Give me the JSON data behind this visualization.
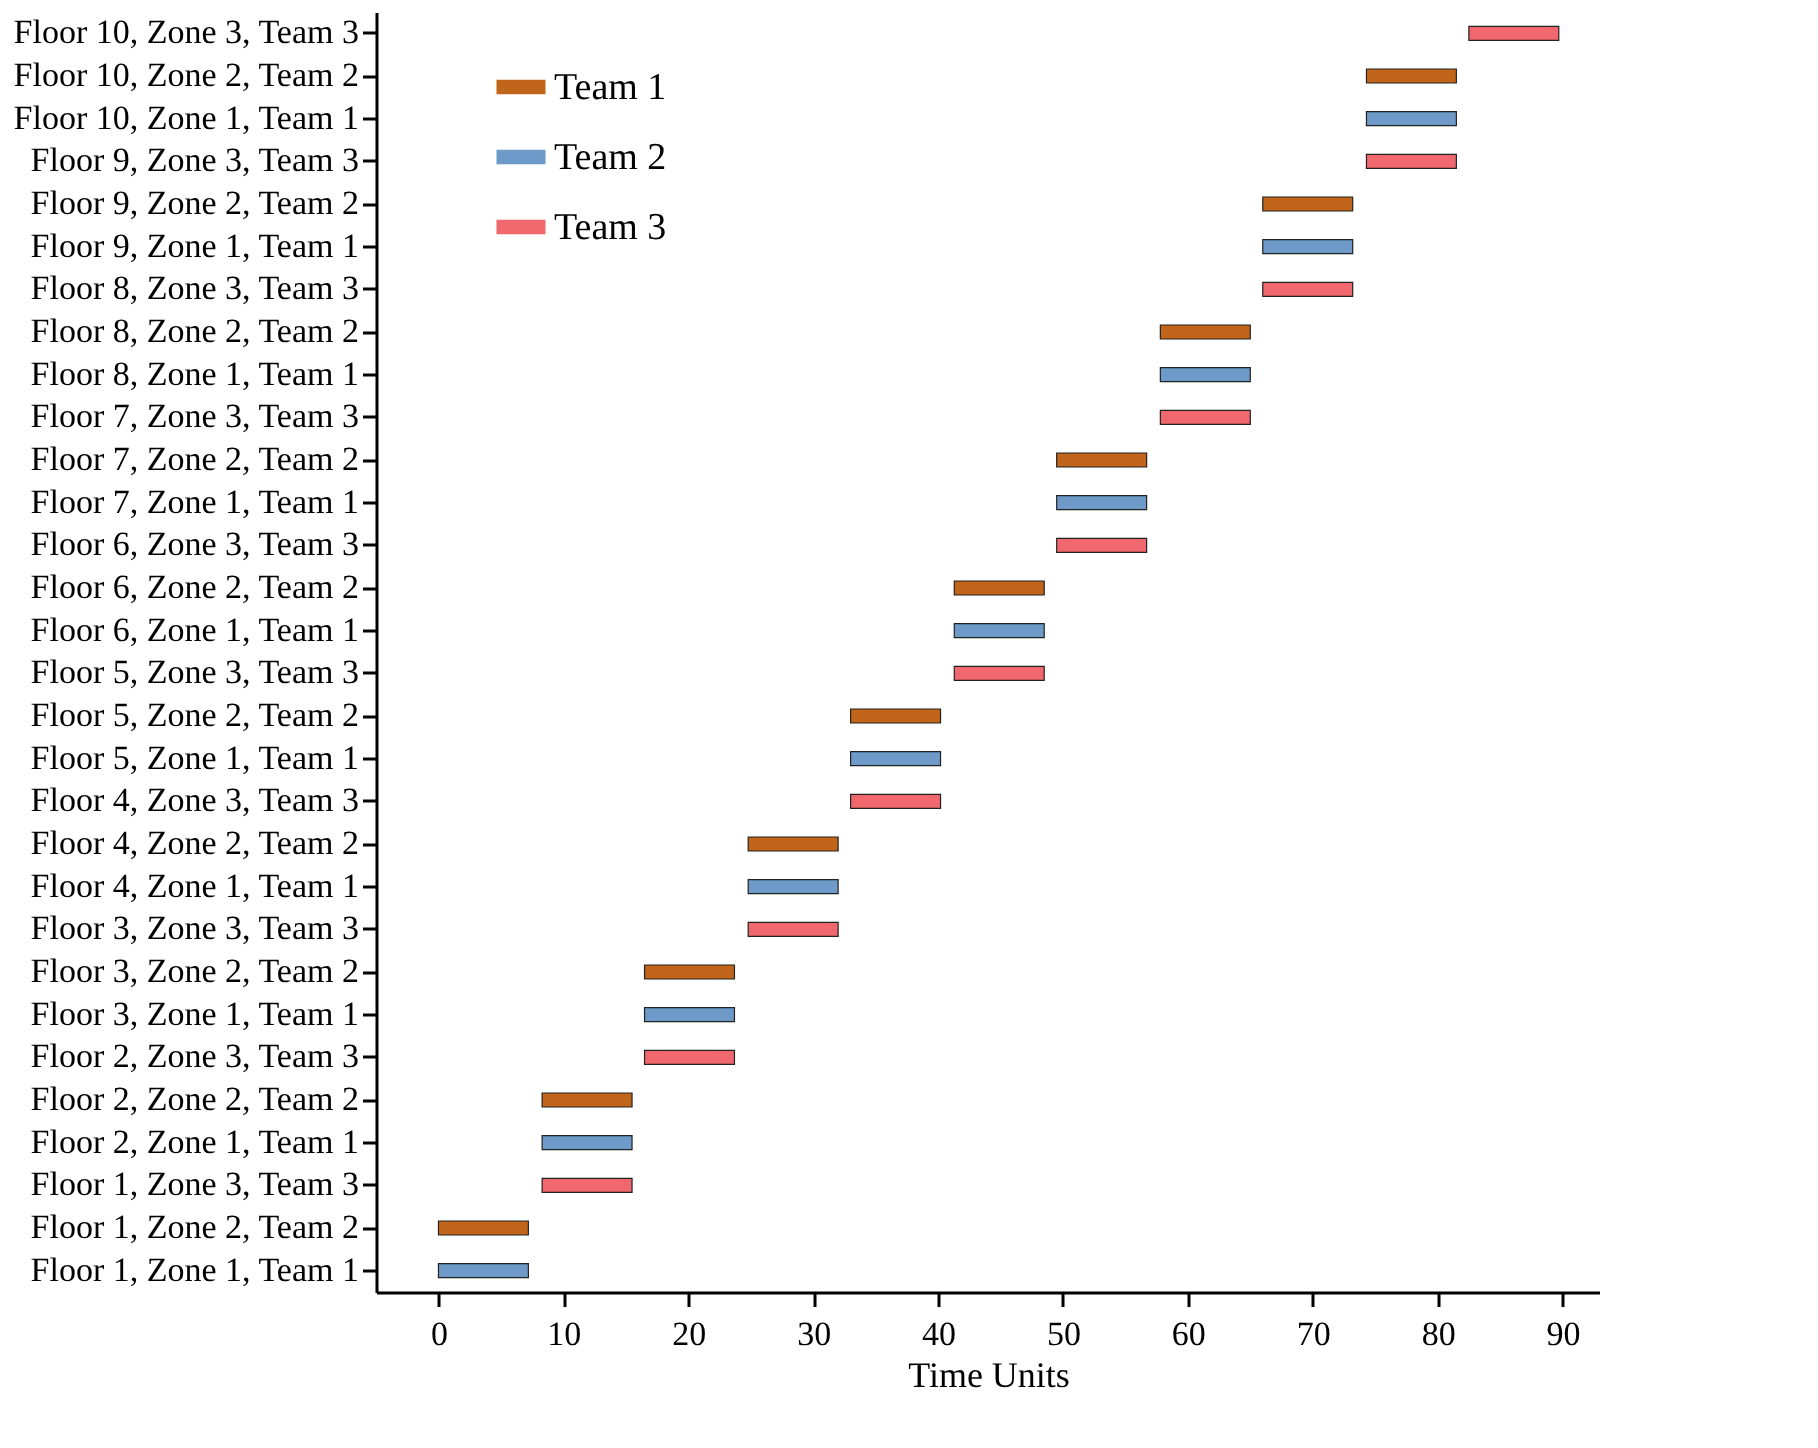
{
  "chart_data": {
    "type": "bar",
    "orientation": "horizontal",
    "xlabel": "Time Units",
    "xlim": [
      -5,
      93
    ],
    "xticks": [
      0,
      10,
      20,
      30,
      40,
      50,
      60,
      70,
      80,
      90
    ],
    "legend": "top left",
    "categories": [
      "Floor 10, Zone 3, Team 3",
      "Floor 10, Zone 2, Team 2",
      "Floor 10, Zone 1, Team 1",
      "Floor 9, Zone 3, Team 3",
      "Floor 9, Zone 2, Team 2",
      "Floor 9, Zone 1, Team 1",
      "Floor 8, Zone 3, Team 3",
      "Floor 8, Zone 2, Team 2",
      "Floor 8, Zone 1, Team 1",
      "Floor 7, Zone 3, Team 3",
      "Floor 7, Zone 2, Team 2",
      "Floor 7, Zone 1, Team 1",
      "Floor 6, Zone 3, Team 3",
      "Floor 6, Zone 2, Team 2",
      "Floor 6, Zone 1, Team 1",
      "Floor 5, Zone 3, Team 3",
      "Floor 5, Zone 2, Team 2",
      "Floor 5, Zone 1, Team 1",
      "Floor 4, Zone 3, Team 3",
      "Floor 4, Zone 2, Team 2",
      "Floor 4, Zone 1, Team 1",
      "Floor 3, Zone 3, Team 3",
      "Floor 3, Zone 2, Team 2",
      "Floor 3, Zone 1, Team 1",
      "Floor 2, Zone 3, Team 3",
      "Floor 2, Zone 2, Team 2",
      "Floor 2, Zone 1, Team 1",
      "Floor 1, Zone 3, Team 3",
      "Floor 1, Zone 2, Team 2",
      "Floor 1, Zone 1, Team 1"
    ],
    "series": [
      {
        "name": "Team 1",
        "color": "#c0651a",
        "base": [
          null,
          74.3,
          null,
          null,
          66,
          null,
          null,
          57.8,
          null,
          null,
          49.5,
          null,
          null,
          41.3,
          null,
          null,
          33,
          null,
          null,
          24.8,
          null,
          null,
          16.5,
          null,
          null,
          8.3,
          null,
          null,
          0,
          null
        ],
        "values": [
          null,
          7.2,
          null,
          null,
          7.2,
          null,
          null,
          7.2,
          null,
          null,
          7.2,
          null,
          null,
          7.2,
          null,
          null,
          7.2,
          null,
          null,
          7.2,
          null,
          null,
          7.2,
          null,
          null,
          7.2,
          null,
          null,
          7.2,
          null
        ]
      },
      {
        "name": "Team 2",
        "color": "#6d9ac8",
        "base": [
          null,
          null,
          74.3,
          null,
          null,
          66,
          null,
          null,
          57.8,
          null,
          null,
          49.5,
          null,
          null,
          41.3,
          null,
          null,
          33,
          null,
          null,
          24.8,
          null,
          null,
          16.5,
          null,
          null,
          8.3,
          null,
          null,
          0
        ],
        "values": [
          null,
          null,
          7.2,
          null,
          null,
          7.2,
          null,
          null,
          7.2,
          null,
          null,
          7.2,
          null,
          null,
          7.2,
          null,
          null,
          7.2,
          null,
          null,
          7.2,
          null,
          null,
          7.2,
          null,
          null,
          7.2,
          null,
          null,
          7.2
        ]
      },
      {
        "name": "Team 3",
        "color": "#f0686e",
        "base": [
          82.5,
          null,
          null,
          74.3,
          null,
          null,
          66,
          null,
          null,
          57.8,
          null,
          null,
          49.5,
          null,
          null,
          41.3,
          null,
          null,
          33,
          null,
          null,
          24.8,
          null,
          null,
          16.5,
          null,
          null,
          8.3,
          null,
          null
        ],
        "values": [
          7.2,
          null,
          null,
          7.2,
          null,
          null,
          7.2,
          null,
          null,
          7.2,
          null,
          null,
          7.2,
          null,
          null,
          7.2,
          null,
          null,
          7.2,
          null,
          null,
          7.2,
          null,
          null,
          7.2,
          null,
          null,
          7.2,
          null,
          null
        ]
      }
    ]
  }
}
